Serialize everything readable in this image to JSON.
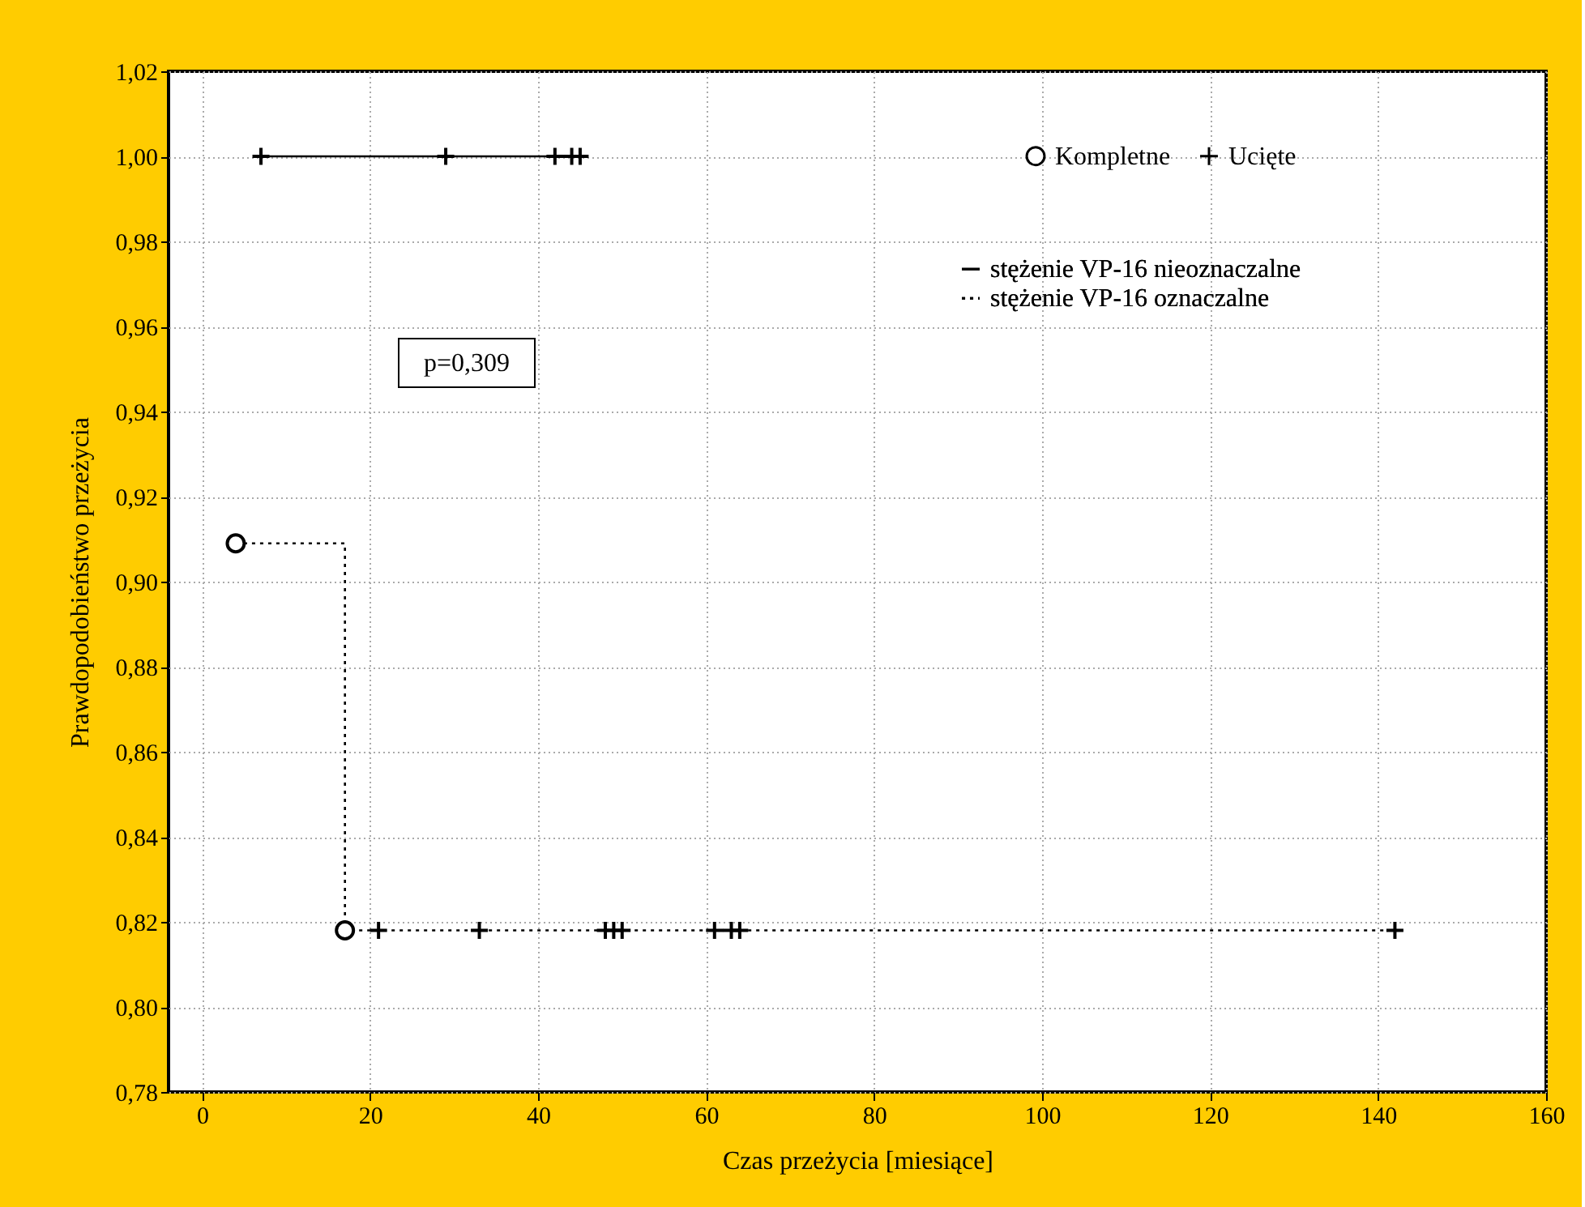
{
  "chart_data": {
    "type": "step",
    "xlabel": "Czas przeżycia [miesiące]",
    "ylabel": "Prawdopodobieństwo przeżycia",
    "xlim": [
      -4,
      160
    ],
    "xticks": [
      0,
      20,
      40,
      60,
      80,
      100,
      120,
      140,
      160
    ],
    "ylim": [
      0.78,
      1.02
    ],
    "yticks": [
      {
        "value": 0.78,
        "label": "0,78"
      },
      {
        "value": 0.8,
        "label": "0,80"
      },
      {
        "value": 0.82,
        "label": "0,82"
      },
      {
        "value": 0.84,
        "label": "0,84"
      },
      {
        "value": 0.86,
        "label": "0,86"
      },
      {
        "value": 0.88,
        "label": "0,88"
      },
      {
        "value": 0.9,
        "label": "0,90"
      },
      {
        "value": 0.92,
        "label": "0,92"
      },
      {
        "value": 0.94,
        "label": "0,94"
      },
      {
        "value": 0.96,
        "label": "0,96"
      },
      {
        "value": 0.98,
        "label": "0,98"
      },
      {
        "value": 1.0,
        "label": "1,00"
      },
      {
        "value": 1.02,
        "label": "1,02"
      }
    ],
    "grid": true,
    "legend": "top right",
    "series": [
      {
        "name": "stężenie VP-16 nieoznaczalne",
        "color": "#000000",
        "line_style": "solid",
        "x": [
          7,
          29,
          42,
          44,
          45
        ],
        "values": [
          1.0,
          1.0,
          1.0,
          1.0,
          1.0
        ]
      },
      {
        "name": "stężenie VP-16 oznaczalne",
        "color": "#000000",
        "line_style": "dotted",
        "x": [
          4,
          17,
          21,
          33,
          48,
          49,
          50,
          61,
          63,
          64,
          142
        ],
        "values": [
          0.909,
          0.818,
          0.818,
          0.818,
          0.818,
          0.818,
          0.818,
          0.818,
          0.818,
          0.818,
          0.818
        ]
      },
      {
        "name": "Kompletne",
        "type": "scatter",
        "marker": "circle",
        "color": "#ffffff",
        "x": [
          4,
          17
        ],
        "values": [
          0.909,
          0.818
        ]
      },
      {
        "name": "Ucięte",
        "type": "scatter",
        "marker": "cross",
        "color": "#000000",
        "x": [
          7,
          29,
          42,
          44,
          45,
          21,
          33,
          48,
          49,
          50,
          61,
          63,
          64,
          142
        ],
        "values": [
          1.0,
          1.0,
          1.0,
          1.0,
          1.0,
          0.818,
          0.818,
          0.818,
          0.818,
          0.818,
          0.818,
          0.818,
          0.818,
          0.818
        ]
      }
    ],
    "annotations": [
      "p=0,309"
    ]
  }
}
